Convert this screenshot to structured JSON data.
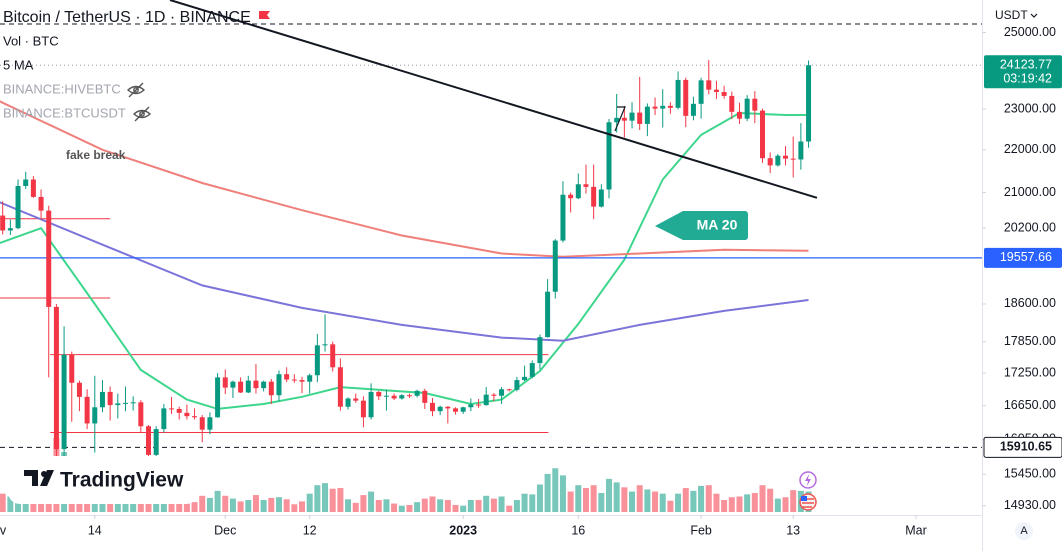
{
  "chart_data": {
    "type": "candlestick",
    "title": "Bitcoin / TetherUS · 1D · BINANCE",
    "indicators": [
      "Vol · BTC",
      "5 MA",
      "BINANCE:HIVEBTC",
      "BINANCE:BTCUSDT"
    ],
    "currency": "USDT",
    "up_color": "#089981",
    "down_color": "#f23645",
    "log_scale": true,
    "grid": false,
    "xlim": [
      0.65,
      128.6
    ],
    "ylim": [
      14780,
      25900
    ],
    "xticks": [
      {
        "value": 0,
        "label": "Nov"
      },
      {
        "value": 13,
        "label": "14"
      },
      {
        "value": 30,
        "label": "Dec"
      },
      {
        "value": 41,
        "label": "12"
      },
      {
        "value": 61,
        "label": "2023"
      },
      {
        "value": 76,
        "label": "16"
      },
      {
        "value": 92,
        "label": "Feb"
      },
      {
        "value": 104,
        "label": "13"
      },
      {
        "value": 120,
        "label": "Mar"
      }
    ],
    "yticks": [
      {
        "value": 25000,
        "label": "25000.00"
      },
      {
        "value": 23000,
        "label": "23000.00"
      },
      {
        "value": 22000,
        "label": "22000.00"
      },
      {
        "value": 21000,
        "label": "21000.00"
      },
      {
        "value": 20200,
        "label": "20200.00"
      },
      {
        "value": 18600,
        "label": "18600.00"
      },
      {
        "value": 17850,
        "label": "17850.00"
      },
      {
        "value": 17250,
        "label": "17250.00"
      },
      {
        "value": 16650,
        "label": "16650.00"
      },
      {
        "value": 16050,
        "label": "16050.00"
      },
      {
        "value": 15450,
        "label": "15450.00"
      },
      {
        "value": 14930,
        "label": "14930.00"
      }
    ],
    "candles": [
      [
        20490,
        20690,
        20340,
        20480
      ],
      [
        20480,
        20800,
        20060,
        20150
      ],
      [
        20150,
        20390,
        20050,
        20200
      ],
      [
        20200,
        21300,
        20180,
        21150
      ],
      [
        21150,
        21480,
        21080,
        21300
      ],
      [
        21300,
        21380,
        20880,
        20900
      ],
      [
        20900,
        21070,
        20380,
        20590
      ],
      [
        20590,
        20700,
        17170,
        18540
      ],
      [
        18540,
        18600,
        15590,
        15880
      ],
      [
        15880,
        18150,
        15750,
        17600
      ],
      [
        17600,
        17660,
        16360,
        17070
      ],
      [
        17070,
        17110,
        16550,
        16810
      ],
      [
        16810,
        16950,
        16230,
        16330
      ],
      [
        16330,
        17200,
        15820,
        16620
      ],
      [
        16620,
        17120,
        16530,
        16900
      ],
      [
        16900,
        17000,
        16380,
        16660
      ],
      [
        16660,
        16870,
        16420,
        16690
      ],
      [
        16690,
        17000,
        16550,
        16700
      ],
      [
        16700,
        16820,
        16560,
        16710
      ],
      [
        16710,
        16750,
        16170,
        16280
      ],
      [
        16280,
        16300,
        15480,
        15780
      ],
      [
        15780,
        16280,
        15620,
        16230
      ],
      [
        16230,
        16680,
        16170,
        16600
      ],
      [
        16600,
        16810,
        16500,
        16590
      ],
      [
        16590,
        16630,
        16400,
        16520
      ],
      [
        16520,
        16670,
        16400,
        16460
      ],
      [
        16460,
        16600,
        16400,
        16440
      ],
      [
        16440,
        16480,
        16000,
        16220
      ],
      [
        16220,
        16530,
        16140,
        16440
      ],
      [
        16440,
        17250,
        16430,
        17170
      ],
      [
        17170,
        17320,
        16860,
        16980
      ],
      [
        16980,
        17110,
        16790,
        17090
      ],
      [
        17090,
        17170,
        16880,
        16890
      ],
      [
        16890,
        17200,
        16880,
        17110
      ],
      [
        17110,
        17420,
        16870,
        16970
      ],
      [
        16970,
        17110,
        16910,
        17090
      ],
      [
        17090,
        17140,
        16680,
        16840
      ],
      [
        16840,
        17300,
        16730,
        17230
      ],
      [
        17230,
        17360,
        17080,
        17130
      ],
      [
        17130,
        17230,
        17070,
        17120
      ],
      [
        17120,
        17180,
        16880,
        17090
      ],
      [
        17090,
        17240,
        16870,
        17210
      ],
      [
        17210,
        18000,
        17080,
        17780
      ],
      [
        17780,
        18390,
        17660,
        17800
      ],
      [
        17800,
        17850,
        17280,
        17360
      ],
      [
        17360,
        17530,
        16560,
        16630
      ],
      [
        16630,
        16800,
        16580,
        16780
      ],
      [
        16780,
        16870,
        16700,
        16740
      ],
      [
        16740,
        16820,
        16260,
        16440
      ],
      [
        16440,
        17060,
        16400,
        16900
      ],
      [
        16900,
        16920,
        16750,
        16820
      ],
      [
        16820,
        16940,
        16560,
        16830
      ],
      [
        16830,
        16870,
        16750,
        16780
      ],
      [
        16780,
        16860,
        16760,
        16840
      ],
      [
        16840,
        16870,
        16790,
        16830
      ],
      [
        16830,
        16940,
        16800,
        16920
      ],
      [
        16920,
        16960,
        16590,
        16700
      ],
      [
        16700,
        16790,
        16460,
        16550
      ],
      [
        16550,
        16650,
        16480,
        16630
      ],
      [
        16630,
        16640,
        16330,
        16600
      ],
      [
        16600,
        16620,
        16490,
        16540
      ],
      [
        16540,
        16630,
        16500,
        16620
      ],
      [
        16620,
        16780,
        16550,
        16670
      ],
      [
        16670,
        16770,
        16610,
        16660
      ],
      [
        16660,
        16990,
        16650,
        16850
      ],
      [
        16850,
        16880,
        16730,
        16830
      ],
      [
        16830,
        16990,
        16680,
        16950
      ],
      [
        16950,
        16960,
        16910,
        16940
      ],
      [
        16940,
        17180,
        16910,
        17120
      ],
      [
        17120,
        17390,
        17100,
        17180
      ],
      [
        17180,
        17490,
        17150,
        17440
      ],
      [
        17440,
        17990,
        17320,
        17940
      ],
      [
        17940,
        19110,
        17930,
        18850
      ],
      [
        18850,
        19960,
        18710,
        19930
      ],
      [
        19930,
        21260,
        19890,
        20950
      ],
      [
        20950,
        21000,
        20550,
        20870
      ],
      [
        20870,
        21440,
        20850,
        21190
      ],
      [
        21190,
        21650,
        20980,
        21130
      ],
      [
        21130,
        21650,
        20400,
        20680
      ],
      [
        20680,
        21190,
        20660,
        21070
      ],
      [
        21070,
        22750,
        20870,
        22670
      ],
      [
        22670,
        23380,
        22420,
        22780
      ],
      [
        22780,
        23080,
        22300,
        22710
      ],
      [
        22710,
        23170,
        22520,
        22910
      ],
      [
        22910,
        23820,
        22480,
        22630
      ],
      [
        22630,
        23140,
        22330,
        23060
      ],
      [
        23060,
        23290,
        22850,
        23010
      ],
      [
        23010,
        23500,
        22540,
        23080
      ],
      [
        23080,
        23170,
        22880,
        23030
      ],
      [
        23030,
        23960,
        22990,
        23740
      ],
      [
        23740,
        23800,
        22550,
        22830
      ],
      [
        22830,
        23310,
        22720,
        23130
      ],
      [
        23130,
        23800,
        22760,
        23730
      ],
      [
        23730,
        24260,
        23370,
        23490
      ],
      [
        23490,
        23720,
        23250,
        23430
      ],
      [
        23430,
        23590,
        23260,
        23330
      ],
      [
        23330,
        23440,
        22750,
        22930
      ],
      [
        22930,
        23160,
        22630,
        22760
      ],
      [
        22760,
        23350,
        22700,
        23260
      ],
      [
        23260,
        23450,
        22650,
        22960
      ],
      [
        22960,
        23010,
        21690,
        21800
      ],
      [
        21800,
        21940,
        21450,
        21630
      ],
      [
        21630,
        21900,
        21600,
        21860
      ],
      [
        21860,
        22090,
        21630,
        21790
      ],
      [
        21790,
        22320,
        21350,
        21770
      ],
      [
        21770,
        22650,
        21530,
        22200
      ],
      [
        22200,
        24250,
        22050,
        24123.77
      ]
    ],
    "volume": [
      230,
      260,
      220,
      300,
      180,
      150,
      290,
      760,
      1050,
      850,
      480,
      330,
      280,
      420,
      300,
      270,
      230,
      200,
      130,
      190,
      340,
      290,
      250,
      180,
      140,
      120,
      140,
      230,
      200,
      300,
      230,
      190,
      150,
      170,
      240,
      170,
      200,
      210,
      180,
      110,
      150,
      260,
      380,
      410,
      330,
      340,
      180,
      130,
      240,
      290,
      170,
      180,
      120,
      90,
      100,
      140,
      190,
      220,
      180,
      170,
      100,
      90,
      170,
      170,
      230,
      190,
      220,
      90,
      170,
      260,
      250,
      390,
      540,
      620,
      520,
      290,
      380,
      340,
      380,
      270,
      470,
      420,
      350,
      290,
      380,
      320,
      290,
      260,
      160,
      260,
      340,
      300,
      370,
      380,
      260,
      170,
      210,
      220,
      250,
      270,
      380,
      330,
      190,
      210,
      310,
      300,
      290
    ],
    "series": [
      {
        "name": "MA 20",
        "color": "#3dd68c",
        "x": [
          0,
          6,
          13,
          19,
          25,
          29,
          35,
          40,
          45,
          50,
          56,
          62,
          66,
          71,
          76,
          82,
          87,
          92,
          97,
          103,
          106
        ],
        "values": [
          19840,
          20200,
          18600,
          17310,
          16760,
          16590,
          16680,
          16810,
          16990,
          16940,
          16880,
          16680,
          16760,
          17290,
          18200,
          19520,
          21300,
          22360,
          22900,
          22850,
          22850
        ]
      },
      {
        "color": "#ef7f7a",
        "x": [
          0,
          14,
          27,
          40,
          53,
          66,
          74,
          84,
          95,
          106
        ],
        "values": [
          23250,
          22000,
          21220,
          20600,
          20040,
          19650,
          19580,
          19650,
          19730,
          19710
        ]
      },
      {
        "color": "#7b74d9",
        "x": [
          0,
          14,
          27,
          40,
          53,
          66,
          74,
          84,
          95,
          106
        ],
        "values": [
          20820,
          19840,
          18980,
          18520,
          18180,
          17930,
          17870,
          18180,
          18460,
          18680
        ]
      }
    ],
    "price_lines": [
      {
        "value": 24123.77,
        "countdown": "03:19:42",
        "color": "#089981",
        "style": "dotted"
      },
      {
        "value": 19557.66,
        "color": "#2962ff",
        "style": "solid"
      },
      {
        "value": 15910.65,
        "color": "#131722",
        "style": "dashed"
      }
    ],
    "top_line": {
      "value": 25230,
      "color": "#131722"
    },
    "levels": [
      {
        "value": 20410,
        "x": [
          0.65,
          15
        ],
        "color": "#f23645"
      },
      {
        "value": 18720,
        "x": [
          0.65,
          15
        ],
        "color": "#f23645"
      },
      {
        "value": 17600,
        "x": [
          7.2,
          72.1
        ],
        "color": "#f23645"
      },
      {
        "value": 16170,
        "x": [
          7.2,
          72.1
        ],
        "color": "#f23645"
      }
    ],
    "trendline": {
      "x": [
        22.8,
        107.1
      ],
      "values": [
        25900,
        20880
      ],
      "color": "#131722"
    },
    "annotations": [
      "fake break"
    ],
    "brand": "TradingView",
    "scale_mode": "A"
  }
}
